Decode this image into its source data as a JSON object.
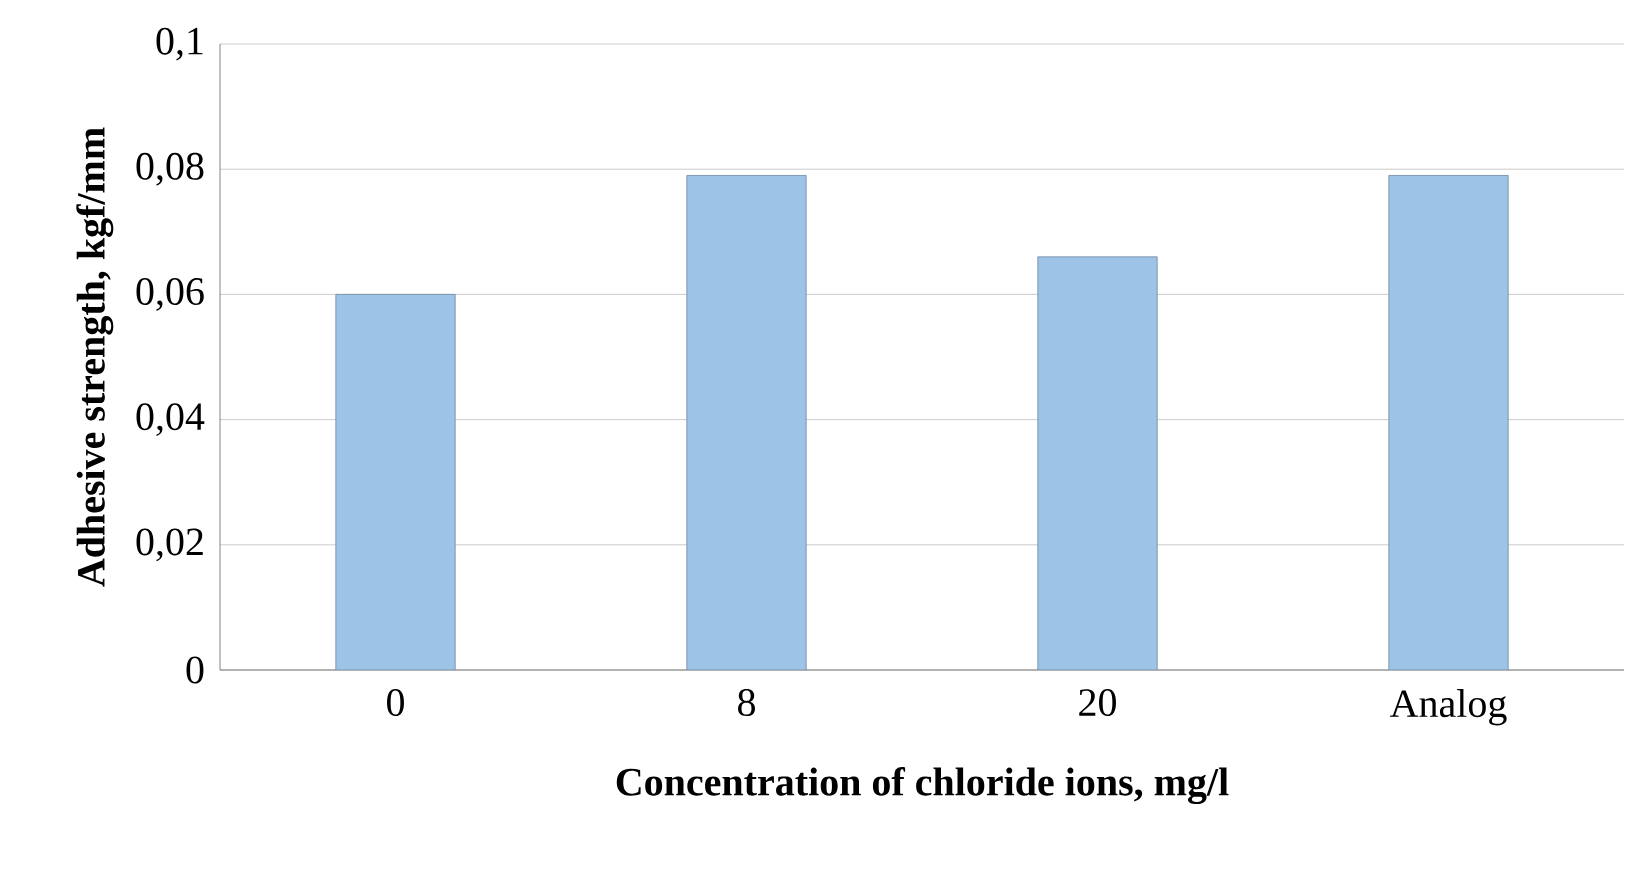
{
  "chart_data": {
    "type": "bar",
    "xlabel": "Concentration of chloride ions, mg/l",
    "ylabel": "Adhesive strength, kgf/mm",
    "categories": [
      "0",
      "8",
      "20",
      "Analog"
    ],
    "values": [
      0.06,
      0.079,
      0.066,
      0.079
    ],
    "color": "#9dc3e6",
    "ylim": [
      0,
      0.1
    ],
    "yticks": [
      {
        "value": 0,
        "label": "0"
      },
      {
        "value": 0.02,
        "label": "0,02"
      },
      {
        "value": 0.04,
        "label": "0,04"
      },
      {
        "value": 0.06,
        "label": "0,06"
      },
      {
        "value": 0.08,
        "label": "0,08"
      },
      {
        "value": 0.1,
        "label": "0,1"
      }
    ],
    "grid": "y"
  }
}
